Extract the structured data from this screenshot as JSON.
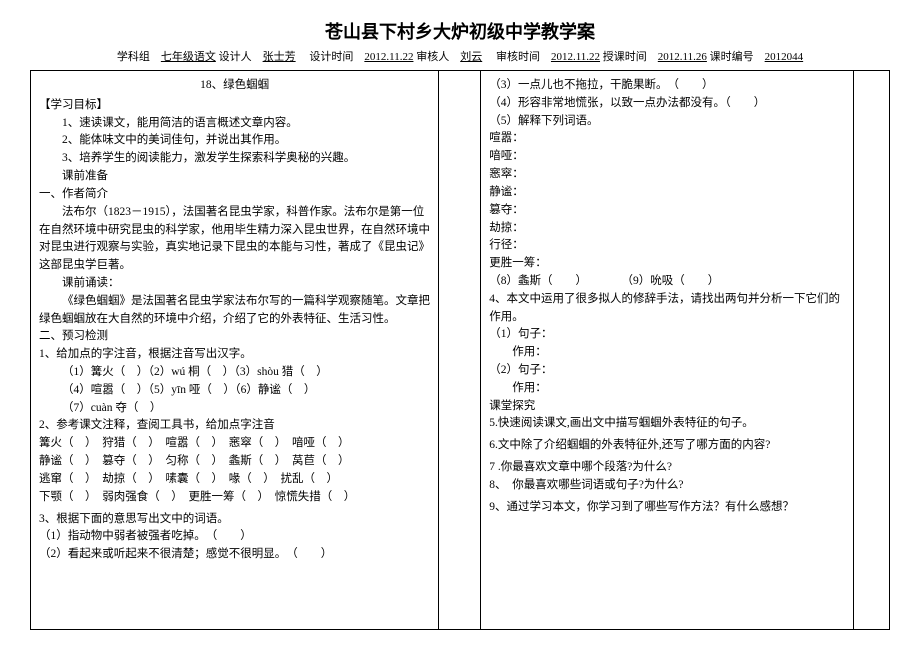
{
  "header": {
    "title": "苍山县下村乡大炉初级中学教学案",
    "subject_label": "学科组",
    "subject": "七年级语文",
    "designer_label": "设计人",
    "designer": "张士芳",
    "design_time_label": "设计时间",
    "design_time": "2012.11.22",
    "reviewer_label": "审核人",
    "reviewer": "刘云",
    "review_time_label": "审核时间",
    "review_time": "2012.11.22",
    "teach_time_label": "授课时间",
    "teach_time": "2012.11.26",
    "lesson_no_label": "课时编号",
    "lesson_no": "2012044"
  },
  "left": {
    "lesson": "18、绿色蝈蝈",
    "goal_h": "【学习目标】",
    "g1": "1、速读课文，能用简洁的语言概述文章内容。",
    "g2": "2、能体味文中的美词佳句，并说出其作用。",
    "g3": "3、培养学生的阅读能力，激发学生探索科学奥秘的兴趣。",
    "prep": "课前准备",
    "author_h": "一、作者简介",
    "author_p1": "法布尔（1823－1915），法国著名昆虫学家，科普作家。法布尔是第一位在自然环境中研究昆虫的科学家，他用毕生精力深入昆虫世界，在自然环境中对昆虫进行观察与实验，真实地记录下昆虫的本能与习性，著成了《昆虫记》这部昆虫学巨著。",
    "preread_h": "课前诵读：",
    "preread_p": "《绿色蝈蝈》是法国著名昆虫学家法布尔写的一篇科学观察随笔。文章把绿色蝈蝈放在大自然的环境中介绍，介绍了它的外表特征、生活习性。",
    "pretest_h": "二、预习检测",
    "q1": "1、给加点的字注音，根据注音写出汉字。",
    "q1a": "（1）篝火（　）（2）wú 桐（　）（3）shòu 猎（　）",
    "q1b": "（4）喧嚣（　）（5）yīn 哑（　）（6）静谧（　）",
    "q1c": "（7）cuàn 夺（　）",
    "q2": "2、参考课文注释，查阅工具书，给加点字注音",
    "q2a": "篝火（　）　狩猎（　）　喧嚣（　）　窸窣（　）　喑哑（　）",
    "q2b": "静谧（　）　篡夺（　）　匀称（　）　螽斯（　）　莴苣（　）",
    "q2c": "逃窜（　）　劫掠（　）　嗉囊（　）　喙（　）　扰乱（　）",
    "q2d": "下颚（　）　弱肉强食（　）　更胜一筹（　）　惊慌失措（　）",
    "q3": "3、根据下面的意思写出文中的词语。",
    "q3a": "（1）指动物中弱者被强者吃掉。　（　　）",
    "q3b": "（2）看起来或听起来不很清楚；感觉不很明显。　（　　）"
  },
  "right": {
    "r3": "（3）一点儿也不拖拉，干脆果断。　（　　）",
    "r4": "（4）形容非常地慌张，以致一点办法都没有。（　　）",
    "r5": "（5）解释下列词语。",
    "w1": "喧嚣：",
    "w2": "喑哑：",
    "w3": "窸窣：",
    "w4": "静谧：",
    "w5": "篡夺：",
    "w6": "劫掠：",
    "w7": "行径：",
    "w8": "更胜一筹：",
    "w9": "（8）螽斯（　　）　　　　（9）吮吸（　　）",
    "q4": "4、本文中运用了很多拟人的修辞手法，请找出两句并分析一下它们的作用。",
    "q4a": "（1）句子：",
    "q4a2": "作用：",
    "q4b": "（2）句子：",
    "q4b2": "作用：",
    "explore": "课堂探究",
    "q5": "5.快速阅读课文,画出文中描写蝈蝈外表特征的句子。",
    "q6": "6.文中除了介绍蝈蝈的外表特征外,还写了哪方面的内容?",
    "q7": "7 .你最喜欢文章中哪个段落?为什么?",
    "q8": "8、　你最喜欢哪些词语或句子?为什么?",
    "q9": "9、通过学习本文，你学习到了哪些写作方法？有什么感想？"
  }
}
